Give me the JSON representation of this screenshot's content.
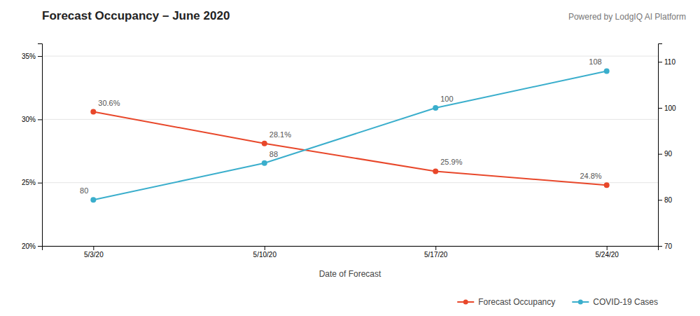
{
  "chart_data": {
    "type": "line",
    "title": "Forecast Occupancy – June 2020",
    "subtitle": "Powered by LodgIQ AI Platform",
    "x_label": "Date of Forecast",
    "categories": [
      "5/3/20",
      "5/10/20",
      "5/17/20",
      "5/24/20"
    ],
    "series": [
      {
        "name": "Forecast Occupancy",
        "color": "#E8472A",
        "marker": "circle",
        "values": [
          30.6,
          28.1,
          25.9,
          24.8
        ],
        "value_labels": [
          "30.6%",
          "28.1%",
          "25.9%",
          "24.8%"
        ]
      },
      {
        "name": "COVID-19 Cases",
        "color": "#3AAECC",
        "marker": "circle",
        "axis": "y2",
        "values": [
          80,
          88,
          100,
          108
        ]
      }
    ],
    "ylim": [
      20,
      36
    ],
    "yticks": [
      {
        "value": 20,
        "label": "20%"
      },
      {
        "value": 25,
        "label": "25%"
      },
      {
        "value": 30,
        "label": "30%"
      },
      {
        "value": 35,
        "label": "35%"
      }
    ],
    "y2lim": [
      70,
      114
    ],
    "y2ticks": [
      70,
      80,
      90,
      100,
      110
    ],
    "grid": true,
    "legend": "bottom right",
    "data_labels": true
  }
}
